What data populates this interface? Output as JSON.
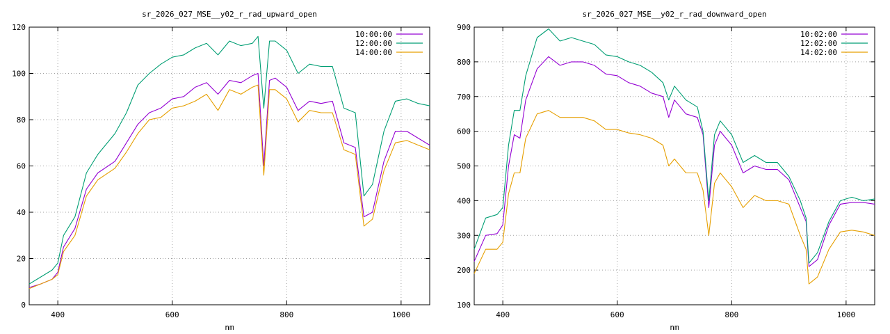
{
  "chart_data": [
    {
      "type": "line",
      "title": "sr_2026_027_MSE__y02_r_rad_upward_open",
      "xlabel": "nm",
      "ylabel": "",
      "xlim": [
        350,
        1050
      ],
      "ylim": [
        0,
        120
      ],
      "xticks": [
        400,
        600,
        800,
        1000
      ],
      "yticks": [
        0,
        20,
        40,
        60,
        80,
        100,
        120
      ],
      "grid": true,
      "legend_position": "top-right",
      "series": [
        {
          "name": "10:00:00",
          "color": "#9400d3",
          "points": [
            [
              350,
              7.5
            ],
            [
              370,
              9
            ],
            [
              390,
              11
            ],
            [
              400,
              14
            ],
            [
              410,
              25
            ],
            [
              430,
              33
            ],
            [
              450,
              50
            ],
            [
              470,
              57
            ],
            [
              500,
              62
            ],
            [
              520,
              70
            ],
            [
              540,
              78
            ],
            [
              560,
              83
            ],
            [
              580,
              85
            ],
            [
              600,
              89
            ],
            [
              620,
              90
            ],
            [
              640,
              94
            ],
            [
              660,
              96
            ],
            [
              680,
              91
            ],
            [
              700,
              97
            ],
            [
              720,
              96
            ],
            [
              740,
              99
            ],
            [
              750,
              100
            ],
            [
              760,
              60
            ],
            [
              770,
              97
            ],
            [
              780,
              98
            ],
            [
              800,
              94
            ],
            [
              820,
              84
            ],
            [
              840,
              88
            ],
            [
              860,
              87
            ],
            [
              880,
              88
            ],
            [
              900,
              70
            ],
            [
              920,
              68
            ],
            [
              935,
              38
            ],
            [
              950,
              40
            ],
            [
              970,
              62
            ],
            [
              990,
              75
            ],
            [
              1010,
              75
            ],
            [
              1030,
              72
            ],
            [
              1050,
              69
            ]
          ]
        },
        {
          "name": "12:00:00",
          "color": "#009e73",
          "points": [
            [
              350,
              9
            ],
            [
              370,
              12
            ],
            [
              390,
              15
            ],
            [
              400,
              18
            ],
            [
              410,
              30
            ],
            [
              430,
              38
            ],
            [
              450,
              57
            ],
            [
              470,
              65
            ],
            [
              500,
              74
            ],
            [
              520,
              83
            ],
            [
              540,
              95
            ],
            [
              560,
              100
            ],
            [
              580,
              104
            ],
            [
              600,
              107
            ],
            [
              620,
              108
            ],
            [
              640,
              111
            ],
            [
              660,
              113
            ],
            [
              680,
              108
            ],
            [
              700,
              114
            ],
            [
              720,
              112
            ],
            [
              740,
              113
            ],
            [
              750,
              116
            ],
            [
              760,
              85
            ],
            [
              770,
              114
            ],
            [
              780,
              114
            ],
            [
              800,
              110
            ],
            [
              820,
              100
            ],
            [
              840,
              104
            ],
            [
              860,
              103
            ],
            [
              880,
              103
            ],
            [
              900,
              85
            ],
            [
              920,
              83
            ],
            [
              935,
              47
            ],
            [
              950,
              52
            ],
            [
              970,
              75
            ],
            [
              990,
              88
            ],
            [
              1010,
              89
            ],
            [
              1030,
              87
            ],
            [
              1050,
              86
            ]
          ]
        },
        {
          "name": "14:00:00",
          "color": "#e69f00",
          "points": [
            [
              350,
              7
            ],
            [
              370,
              9
            ],
            [
              390,
              11
            ],
            [
              400,
              13
            ],
            [
              410,
              23
            ],
            [
              430,
              30
            ],
            [
              450,
              47
            ],
            [
              470,
              54
            ],
            [
              500,
              59
            ],
            [
              520,
              66
            ],
            [
              540,
              74
            ],
            [
              560,
              80
            ],
            [
              580,
              81
            ],
            [
              600,
              85
            ],
            [
              620,
              86
            ],
            [
              640,
              88
            ],
            [
              660,
              91
            ],
            [
              680,
              84
            ],
            [
              700,
              93
            ],
            [
              720,
              91
            ],
            [
              740,
              94
            ],
            [
              750,
              95
            ],
            [
              760,
              56
            ],
            [
              770,
              93
            ],
            [
              780,
              93
            ],
            [
              800,
              89
            ],
            [
              820,
              79
            ],
            [
              840,
              84
            ],
            [
              860,
              83
            ],
            [
              880,
              83
            ],
            [
              900,
              67
            ],
            [
              920,
              65
            ],
            [
              935,
              34
            ],
            [
              950,
              37
            ],
            [
              970,
              58
            ],
            [
              990,
              70
            ],
            [
              1010,
              71
            ],
            [
              1030,
              69
            ],
            [
              1050,
              67
            ]
          ]
        }
      ]
    },
    {
      "type": "line",
      "title": "sr_2026_027_MSE__y02_r_rad_downward_open",
      "xlabel": "nm",
      "ylabel": "",
      "xlim": [
        350,
        1050
      ],
      "ylim": [
        100,
        900
      ],
      "xticks": [
        400,
        600,
        800,
        1000
      ],
      "yticks": [
        100,
        200,
        300,
        400,
        500,
        600,
        700,
        800,
        900
      ],
      "grid": true,
      "legend_position": "top-right",
      "series": [
        {
          "name": "10:02:00",
          "color": "#9400d3",
          "points": [
            [
              350,
              225
            ],
            [
              370,
              300
            ],
            [
              390,
              305
            ],
            [
              400,
              330
            ],
            [
              410,
              500
            ],
            [
              420,
              590
            ],
            [
              430,
              580
            ],
            [
              440,
              690
            ],
            [
              460,
              780
            ],
            [
              480,
              815
            ],
            [
              500,
              790
            ],
            [
              520,
              800
            ],
            [
              540,
              800
            ],
            [
              560,
              790
            ],
            [
              580,
              765
            ],
            [
              600,
              760
            ],
            [
              620,
              740
            ],
            [
              640,
              730
            ],
            [
              660,
              710
            ],
            [
              680,
              700
            ],
            [
              690,
              640
            ],
            [
              700,
              690
            ],
            [
              720,
              650
            ],
            [
              740,
              640
            ],
            [
              750,
              590
            ],
            [
              760,
              380
            ],
            [
              770,
              560
            ],
            [
              780,
              600
            ],
            [
              800,
              560
            ],
            [
              820,
              480
            ],
            [
              840,
              500
            ],
            [
              860,
              490
            ],
            [
              880,
              490
            ],
            [
              900,
              460
            ],
            [
              920,
              380
            ],
            [
              930,
              340
            ],
            [
              935,
              210
            ],
            [
              950,
              230
            ],
            [
              970,
              330
            ],
            [
              990,
              390
            ],
            [
              1010,
              395
            ],
            [
              1030,
              395
            ],
            [
              1050,
              390
            ]
          ]
        },
        {
          "name": "12:02:00",
          "color": "#009e73",
          "points": [
            [
              350,
              260
            ],
            [
              370,
              350
            ],
            [
              390,
              360
            ],
            [
              400,
              380
            ],
            [
              410,
              560
            ],
            [
              420,
              660
            ],
            [
              430,
              660
            ],
            [
              440,
              760
            ],
            [
              460,
              870
            ],
            [
              480,
              895
            ],
            [
              500,
              860
            ],
            [
              520,
              870
            ],
            [
              540,
              860
            ],
            [
              560,
              850
            ],
            [
              580,
              820
            ],
            [
              600,
              815
            ],
            [
              620,
              800
            ],
            [
              640,
              790
            ],
            [
              660,
              770
            ],
            [
              680,
              740
            ],
            [
              690,
              690
            ],
            [
              700,
              730
            ],
            [
              720,
              690
            ],
            [
              740,
              670
            ],
            [
              750,
              600
            ],
            [
              760,
              400
            ],
            [
              770,
              590
            ],
            [
              780,
              630
            ],
            [
              800,
              590
            ],
            [
              820,
              510
            ],
            [
              840,
              530
            ],
            [
              860,
              510
            ],
            [
              880,
              510
            ],
            [
              900,
              470
            ],
            [
              920,
              400
            ],
            [
              930,
              350
            ],
            [
              935,
              220
            ],
            [
              950,
              250
            ],
            [
              970,
              340
            ],
            [
              990,
              400
            ],
            [
              1010,
              410
            ],
            [
              1030,
              400
            ],
            [
              1050,
              405
            ]
          ]
        },
        {
          "name": "14:02:00",
          "color": "#e69f00",
          "points": [
            [
              350,
              190
            ],
            [
              370,
              260
            ],
            [
              390,
              260
            ],
            [
              400,
              280
            ],
            [
              410,
              420
            ],
            [
              420,
              480
            ],
            [
              430,
              480
            ],
            [
              440,
              580
            ],
            [
              460,
              650
            ],
            [
              480,
              660
            ],
            [
              500,
              640
            ],
            [
              520,
              640
            ],
            [
              540,
              640
            ],
            [
              560,
              630
            ],
            [
              580,
              605
            ],
            [
              600,
              605
            ],
            [
              620,
              595
            ],
            [
              640,
              590
            ],
            [
              660,
              580
            ],
            [
              680,
              560
            ],
            [
              690,
              500
            ],
            [
              700,
              520
            ],
            [
              720,
              480
            ],
            [
              740,
              480
            ],
            [
              750,
              430
            ],
            [
              760,
              300
            ],
            [
              770,
              450
            ],
            [
              780,
              480
            ],
            [
              800,
              440
            ],
            [
              820,
              380
            ],
            [
              840,
              415
            ],
            [
              860,
              400
            ],
            [
              880,
              400
            ],
            [
              900,
              390
            ],
            [
              920,
              300
            ],
            [
              930,
              260
            ],
            [
              935,
              160
            ],
            [
              950,
              180
            ],
            [
              970,
              260
            ],
            [
              990,
              310
            ],
            [
              1010,
              315
            ],
            [
              1030,
              310
            ],
            [
              1050,
              300
            ]
          ]
        }
      ]
    }
  ]
}
